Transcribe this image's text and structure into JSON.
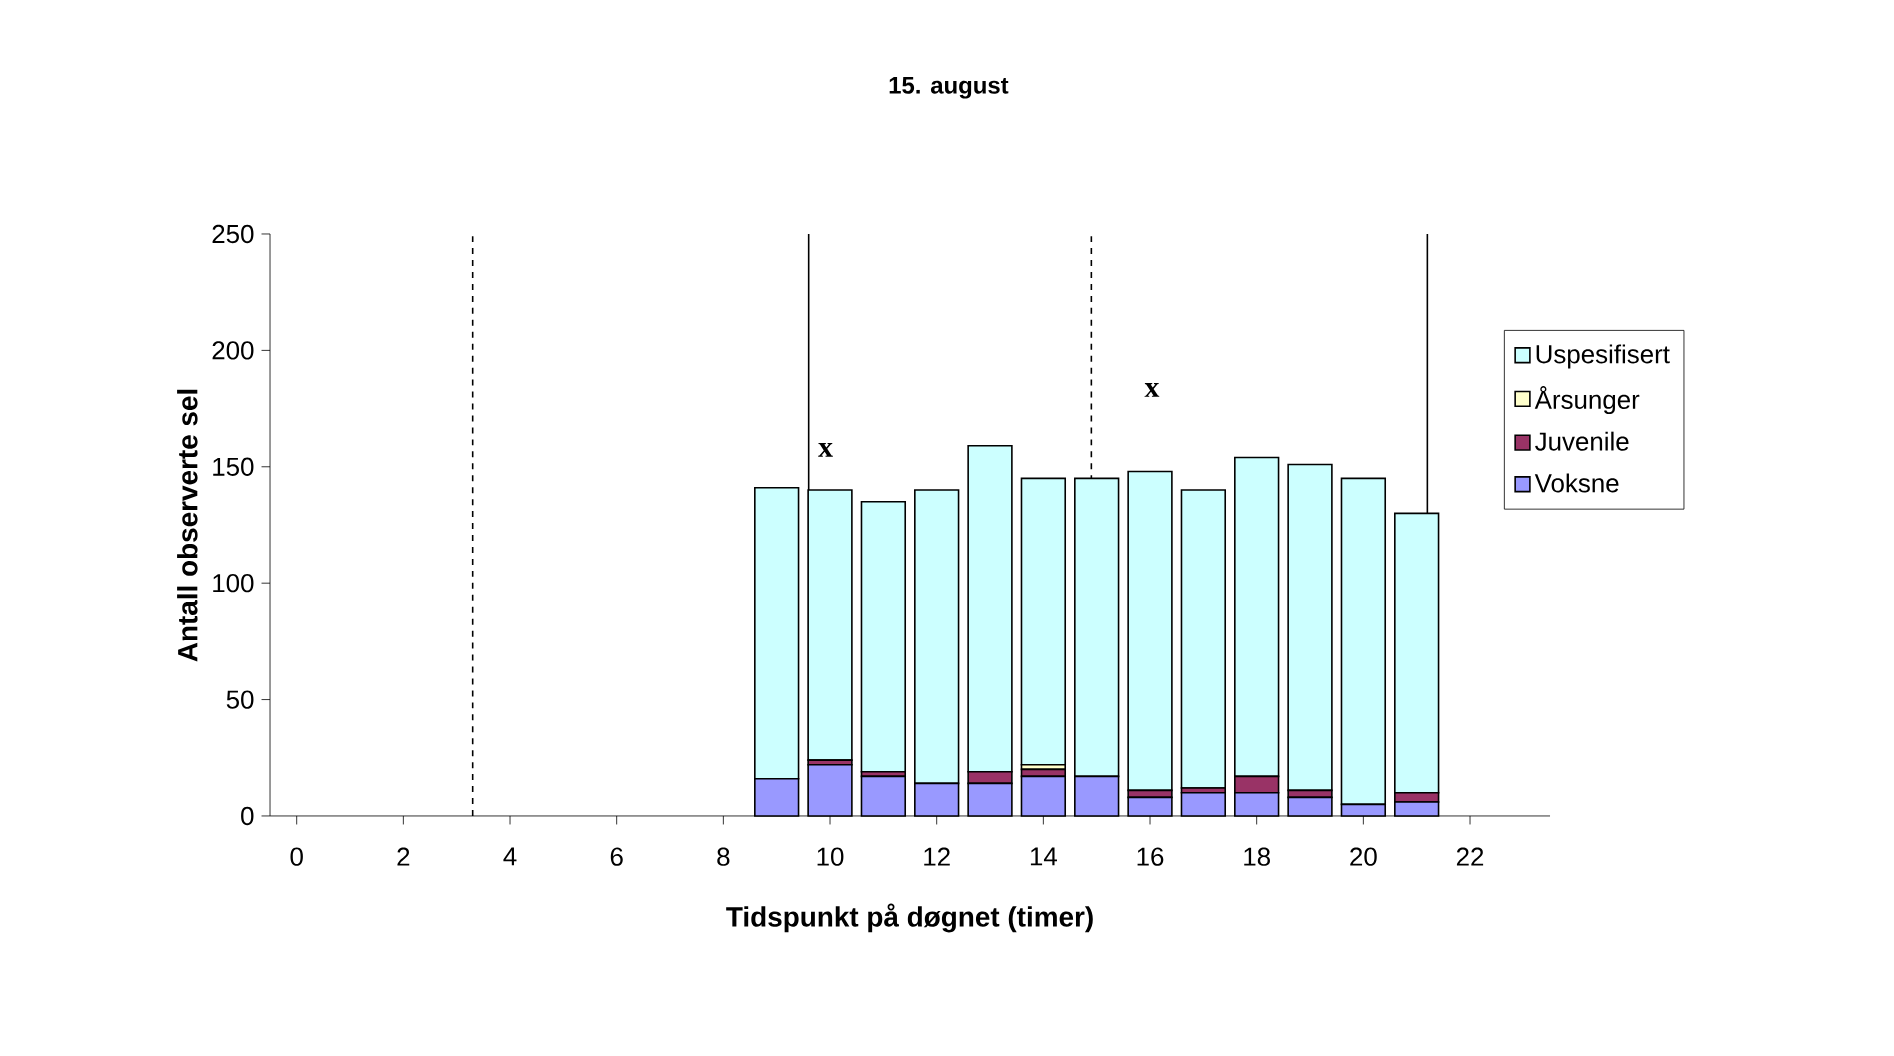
{
  "chart_data": {
    "type": "bar",
    "title": "15. august",
    "xlabel": "Tidspunkt på døgnet (timer)",
    "ylabel": "Antall observerte sel",
    "stacked": true,
    "legend": "right",
    "x": [
      9,
      10,
      11,
      12,
      13,
      14,
      15,
      16,
      17,
      18,
      19,
      20,
      21
    ],
    "xlim": [
      -0.5,
      23.5
    ],
    "xticks": [
      0,
      2,
      4,
      6,
      8,
      10,
      12,
      14,
      16,
      18,
      20,
      22
    ],
    "ylim": [
      0,
      250
    ],
    "yticks": [
      0,
      50,
      100,
      150,
      200,
      250
    ],
    "series": [
      {
        "name": "Voksne",
        "color": "#9999ff",
        "values": [
          16,
          22,
          17,
          14,
          14,
          17,
          17,
          8,
          10,
          10,
          8,
          5,
          6
        ]
      },
      {
        "name": "Juvenile",
        "color": "#993366",
        "values": [
          0,
          2,
          2,
          0,
          5,
          3,
          0,
          3,
          2,
          7,
          3,
          0,
          4
        ]
      },
      {
        "name": "Årsunger",
        "color": "#ffffcc",
        "values": [
          0,
          0,
          0,
          0,
          0,
          2,
          0,
          0,
          0,
          0,
          0,
          0,
          0
        ]
      },
      {
        "name": "Uspesifisert",
        "color": "#ccffff",
        "values": [
          125,
          116,
          116,
          126,
          140,
          123,
          128,
          137,
          128,
          137,
          140,
          140,
          120
        ]
      }
    ],
    "ref_lines": [
      {
        "axis": "x",
        "value": 3.3,
        "line_style": "dashed"
      },
      {
        "axis": "x",
        "value": 9.6,
        "line_style": "solid"
      },
      {
        "axis": "x",
        "value": 14.9,
        "line_style": "dashed"
      },
      {
        "axis": "x",
        "value": 21.2,
        "line_style": "solid"
      }
    ],
    "annotations": [
      "x",
      "x"
    ]
  }
}
